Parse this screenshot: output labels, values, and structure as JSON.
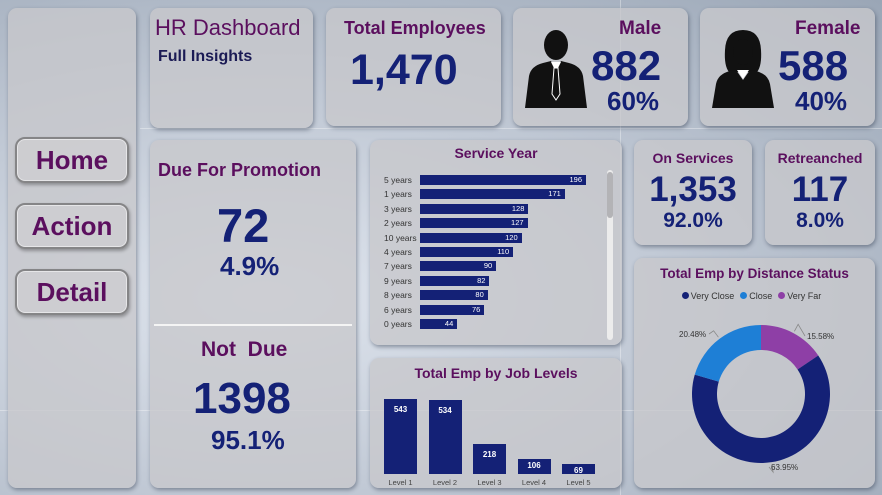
{
  "header": {
    "title": "HR Dashboard",
    "subtitle": "Full Insights"
  },
  "nav": {
    "home": "Home",
    "action": "Action",
    "detail": "Detail"
  },
  "kpis": {
    "total": {
      "label": "Total Employees",
      "value": "1,470"
    },
    "male": {
      "label": "Male",
      "value": "882",
      "pct": "60%"
    },
    "female": {
      "label": "Female",
      "value": "588",
      "pct": "40%"
    },
    "on_services": {
      "label": "On Services",
      "value": "1,353",
      "pct": "92.0%"
    },
    "retrenched": {
      "label": "Retreanched",
      "value": "117",
      "pct": "8.0%"
    }
  },
  "promotion": {
    "due_label": "Due For Promotion",
    "due_value": "72",
    "due_pct": "4.9%",
    "not_due_label": "Not  Due",
    "not_due_value": "1398",
    "not_due_pct": "95.1%"
  },
  "colors": {
    "navy": "#142176",
    "purple": "#5b0f5e",
    "close": "#1e7fd6",
    "very_far": "#8e3fa6"
  },
  "chart_data": [
    {
      "type": "bar",
      "orientation": "horizontal",
      "title": "Service Year",
      "categories": [
        "5 years",
        "1 years",
        "3 years",
        "2 years",
        "10 years",
        "4 years",
        "7 years",
        "9 years",
        "8 years",
        "6 years",
        "0 years"
      ],
      "values": [
        196,
        171,
        128,
        127,
        120,
        110,
        90,
        82,
        80,
        76,
        44
      ]
    },
    {
      "type": "bar",
      "title": "Total Emp by Job Levels",
      "categories": [
        "Level 1",
        "Level 2",
        "Level 3",
        "Level 4",
        "Level 5"
      ],
      "values": [
        543,
        534,
        218,
        106,
        69
      ]
    },
    {
      "type": "pie",
      "title": "Total Emp by Distance Status",
      "legend_position": "top",
      "series": [
        {
          "name": "Very Close",
          "value": 63.95,
          "label": "63.95%",
          "color": "#142176"
        },
        {
          "name": "Close",
          "value": 20.48,
          "label": "20.48%",
          "color": "#1e7fd6"
        },
        {
          "name": "Very Far",
          "value": 15.58,
          "label": "15.58%",
          "color": "#8e3fa6"
        }
      ]
    }
  ]
}
